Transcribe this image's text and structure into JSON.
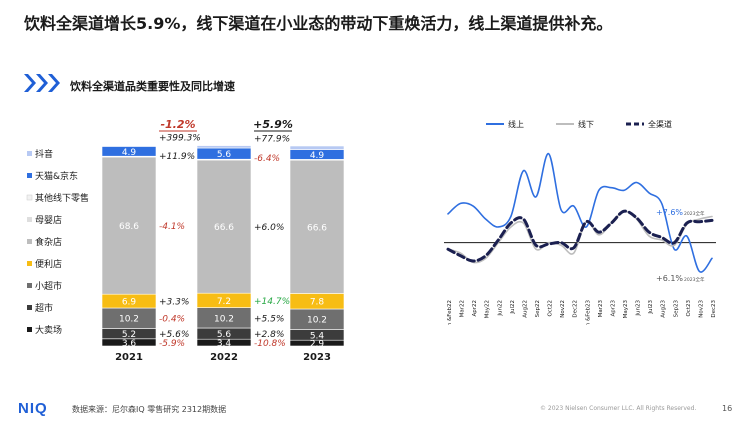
{
  "headline": "饮料全渠道增长5.9%，线下渠道在小业态的带动下重焕活力，线上渠道提供补充。",
  "subtitle": "饮料全渠道品类重要性及同比增速",
  "colors": {
    "accent_blue": "#2f6fe0",
    "red": "#c0392b",
    "green": "#27a844",
    "navy": "#1b2050"
  },
  "chart_data": [
    {
      "type": "bar",
      "subtype": "stacked-100",
      "categories": [
        "2021",
        "2022",
        "2023"
      ],
      "legend_labels": [
        "抖音",
        "天猫&京东",
        "其他线下零售",
        "母婴店",
        "食杂店",
        "便利店",
        "小超市",
        "超市",
        "大卖场"
      ],
      "series": [
        {
          "name": "大卖场",
          "color": "#1a1a1a",
          "values": [
            3.6,
            3.4,
            2.9
          ],
          "labels": [
            "3.6",
            "3.4",
            "2.9"
          ],
          "text_color": "#ffffff"
        },
        {
          "name": "超市",
          "color": "#3c3c3c",
          "values": [
            5.2,
            5.6,
            5.4
          ],
          "labels": [
            "5.2",
            "5.6",
            "5.4"
          ],
          "text_color": "#ffffff"
        },
        {
          "name": "小超市",
          "color": "#6f6f6f",
          "values": [
            10.2,
            10.2,
            10.2
          ],
          "labels": [
            "10.2",
            "10.2",
            "10.2"
          ],
          "text_color": "#ffffff"
        },
        {
          "name": "便利店",
          "color": "#f7bd14",
          "values": [
            6.9,
            7.2,
            7.8
          ],
          "labels": [
            "6.9",
            "7.2",
            "7.8"
          ],
          "text_color": "#ffffff"
        },
        {
          "name": "食杂店",
          "color": "#bdbdbd",
          "values": [
            68.6,
            66.6,
            66.6
          ],
          "labels": [
            "68.6",
            "66.6",
            "66.6"
          ],
          "text_color": "#ffffff"
        },
        {
          "name": "母婴店",
          "color": "#dedede",
          "values": [
            0.2,
            0.2,
            0.2
          ],
          "labels": [
            "",
            "",
            ""
          ],
          "text_color": "#ffffff"
        },
        {
          "name": "其他线下零售",
          "color": "#f2f2f2",
          "values": [
            0.2,
            0.2,
            0.2
          ],
          "labels": [
            "",
            "",
            ""
          ],
          "text_color": "#ffffff"
        },
        {
          "name": "天猫&京东",
          "color": "#2f6fe0",
          "values": [
            4.9,
            5.6,
            4.9
          ],
          "labels": [
            "4.9",
            "5.6",
            "4.9"
          ],
          "text_color": "#ffffff"
        },
        {
          "name": "抖音",
          "color": "#b7c9f3",
          "values": [
            0.2,
            1.2,
            1.8
          ],
          "labels": [
            "",
            "",
            ""
          ],
          "text_color": "#ffffff"
        }
      ],
      "growth_labels": [
        {
          "between": [
            "2021",
            "2022"
          ],
          "top": "-1.2%",
          "top_color": "#c0392b",
          "items": [
            {
              "series": "抖音",
              "text": "+399.3%",
              "color": "#1a1a1a"
            },
            {
              "series": "天猫&京东",
              "text": "+11.9%",
              "color": "#1a1a1a"
            },
            {
              "series": "食杂店",
              "text": "-4.1%",
              "color": "#c0392b"
            },
            {
              "series": "便利店",
              "text": "+3.3%",
              "color": "#1a1a1a"
            },
            {
              "series": "小超市",
              "text": "-0.4%",
              "color": "#c0392b"
            },
            {
              "series": "超市",
              "text": "+5.6%",
              "color": "#1a1a1a"
            },
            {
              "series": "大卖场",
              "text": "-5.9%",
              "color": "#c0392b"
            }
          ]
        },
        {
          "between": [
            "2022",
            "2023"
          ],
          "top": "+5.9%",
          "top_color": "#1a1a1a",
          "items": [
            {
              "series": "抖音",
              "text": "+77.9%",
              "color": "#1a1a1a"
            },
            {
              "series": "天猫&京东",
              "text": "-6.4%",
              "color": "#c0392b"
            },
            {
              "series": "食杂店",
              "text": "+6.0%",
              "color": "#1a1a1a"
            },
            {
              "series": "便利店",
              "text": "+14.7%",
              "color": "#27a844"
            },
            {
              "series": "小超市",
              "text": "+5.5%",
              "color": "#1a1a1a"
            },
            {
              "series": "超市",
              "text": "+2.8%",
              "color": "#1a1a1a"
            },
            {
              "series": "大卖场",
              "text": "-10.8%",
              "color": "#c0392b"
            }
          ]
        }
      ],
      "ylim": [
        0,
        100
      ]
    },
    {
      "type": "line",
      "x": [
        "Jan &Feb22",
        "Mar22",
        "Apr22",
        "May22",
        "Jun22",
        "Jul22",
        "Aug22",
        "Sep22",
        "Oct22",
        "Nov22",
        "Dec22",
        "Jan &Feb23",
        "Mar23",
        "Apr23",
        "May23",
        "Jun23",
        "Jul23",
        "Aug23",
        "Sep23",
        "Oct23",
        "Nov23",
        "Dec23"
      ],
      "legend_position": "top",
      "series": [
        {
          "name": "线上",
          "color": "#2f6fe0",
          "style": "solid",
          "values": [
            22,
            30,
            28,
            18,
            12,
            20,
            55,
            35,
            68,
            25,
            28,
            12,
            40,
            42,
            40,
            46,
            38,
            30,
            -5,
            5,
            -22,
            -12
          ]
        },
        {
          "name": "线下",
          "color": "#bdbdbd",
          "style": "solid",
          "values": [
            -5,
            -8,
            -15,
            -12,
            0,
            12,
            15,
            -5,
            0,
            -2,
            -8,
            16,
            6,
            15,
            24,
            18,
            5,
            2,
            -2,
            14,
            18,
            20
          ]
        },
        {
          "name": "全渠道",
          "color": "#1b2050",
          "style": "dashed",
          "values": [
            -5,
            -10,
            -14,
            -10,
            2,
            15,
            18,
            -2,
            -1,
            0,
            -4,
            16,
            8,
            15,
            24,
            19,
            8,
            4,
            0,
            15,
            16,
            17
          ]
        }
      ],
      "zero_line": true,
      "annotations": [
        {
          "text": "+7.6%",
          "sub": "2023全年",
          "series": "线上"
        },
        {
          "text": "+6.1%",
          "sub": "2023全年",
          "series": "线下"
        }
      ],
      "ylim": [
        -40,
        80
      ]
    }
  ],
  "footer": {
    "logo": "NIQ",
    "source": "数据来源：尼尔森IQ 零售研究 2312期数据",
    "copyright": "© 2023 Nielsen Consumer LLC. All Rights Reserved.",
    "page": "16"
  }
}
